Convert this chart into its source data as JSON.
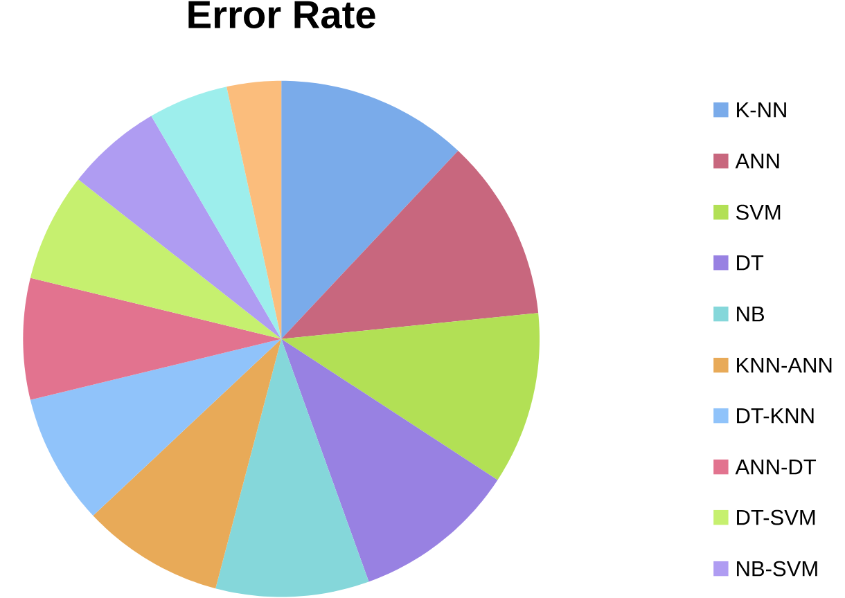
{
  "chart_data": {
    "type": "pie",
    "title": "Error Rate",
    "categories": [
      "K-NN",
      "ANN",
      "SVM",
      "DT",
      "NB",
      "KNN-ANN",
      "DT-KNN",
      "ANN-DT",
      "DT-SVM",
      "NB-SVM",
      null,
      null
    ],
    "values": [
      12.0,
      11.4,
      10.8,
      10.3,
      9.6,
      8.9,
      8.2,
      7.6,
      6.8,
      6.0,
      5.0,
      3.4
    ],
    "colors": [
      "#7aabea",
      "#c8677e",
      "#b2e055",
      "#9881e2",
      "#85d7da",
      "#e8aa58",
      "#90c3fa",
      "#e2738f",
      "#c6f06f",
      "#af9cf2",
      "#9deeec",
      "#fbbd7c"
    ],
    "legend": "right"
  }
}
